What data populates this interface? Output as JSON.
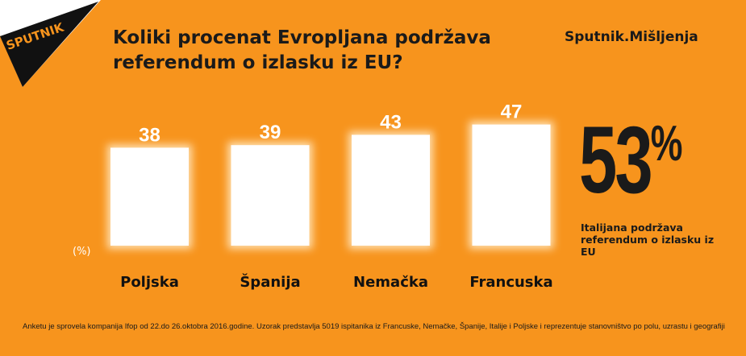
{
  "logo": {
    "text": "SPUTNIK"
  },
  "title": "Koliki procenat Evropljana podržava referendum o izlasku iz EU?",
  "brand": "Sputnik.Mišljenja",
  "colors": {
    "background": "#f7941d",
    "bar": "#ffffff",
    "text": "#1a1a1a"
  },
  "chart_data": {
    "type": "bar",
    "categories": [
      "Poljska",
      "Španija",
      "Nemačka",
      "Francuska"
    ],
    "values": [
      38,
      39,
      43,
      47
    ],
    "unit_label": "(%)",
    "grid": false
  },
  "highlight": {
    "value": "53",
    "unit": "%",
    "text": "Italijana podržava referendum o izlasku iz EU"
  },
  "note": "Anketu je sprovela kompanija Ifop od 22.do 26.oktobra 2016.godine. Uzorak predstavlja 5019 ispitanika iz Francuske, Nemačke, Španije, Italije i Poljske i reprezentuje stanovništvo po polu, uzrastu i geografiji"
}
